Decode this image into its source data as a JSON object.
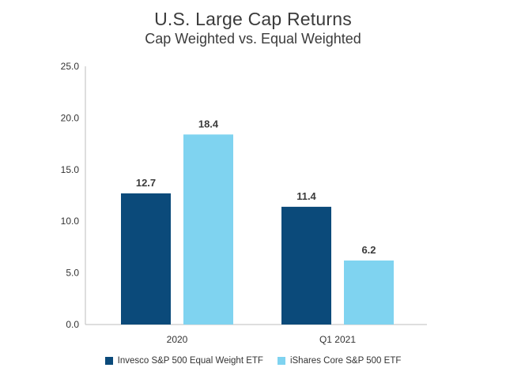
{
  "chart_data": {
    "type": "bar",
    "title": "U.S. Large Cap Returns",
    "subtitle": "Cap Weighted vs. Equal Weighted",
    "categories": [
      "2020",
      "Q1 2021"
    ],
    "series": [
      {
        "name": "Invesco S&P 500 Equal Weight ETF",
        "values": [
          12.7,
          11.4
        ],
        "color": "#0b4a7a"
      },
      {
        "name": "iShares Core S&P 500 ETF",
        "values": [
          18.4,
          6.2
        ],
        "color": "#7fd3f0"
      }
    ],
    "data_labels": [
      [
        "12.7",
        "11.4"
      ],
      [
        "18.4",
        "6.2"
      ]
    ],
    "ylim": [
      0,
      25
    ],
    "yticks": [
      "0.0",
      "5.0",
      "10.0",
      "15.0",
      "20.0",
      "25.0"
    ],
    "xlabel": "",
    "ylabel": "",
    "grid": false,
    "legend_position": "bottom"
  }
}
